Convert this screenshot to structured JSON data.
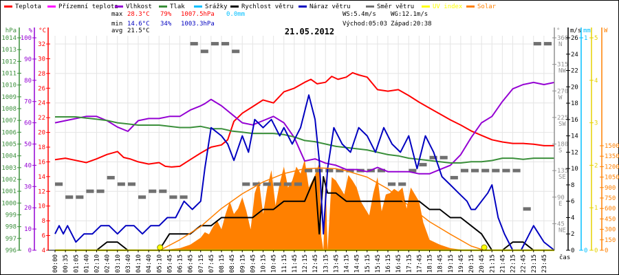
{
  "chart_data": {
    "type": "line",
    "title": "21.05.2012",
    "legend_placement": "top",
    "legend": [
      {
        "name": "Teplota",
        "color": "#ff0000"
      },
      {
        "name": "Přízemní teplota",
        "color": "#ff00ff"
      },
      {
        "name": "Vlhkost",
        "color": "#9400d3"
      },
      {
        "name": "Tlak",
        "color": "#3a8f3a"
      },
      {
        "name": "Srážky",
        "color": "#00bfff"
      },
      {
        "name": "Rychlost větru",
        "color": "#000000"
      },
      {
        "name": "Náraz větru",
        "color": "#0000c0"
      },
      {
        "name": "Směr větru",
        "color": "#707070"
      },
      {
        "name": "UV index",
        "color": "#ffff00"
      },
      {
        "name": "Solar",
        "color": "#ff8000"
      }
    ],
    "stats": {
      "max_label": "max",
      "min_label": "min",
      "avg_label": "avg",
      "max_temp": "28.3°C",
      "max_hum": "79%",
      "max_press": "1007.5hPa",
      "rain": "0.0mm",
      "min_temp": "14.6°C",
      "min_hum": "34%",
      "min_press": "1003.3hPa",
      "avg_temp": "21.5°C",
      "ws": "WS:5.4m/s",
      "wg": "WG:12.1m/s",
      "sunrise": "Východ:05:03",
      "sunset": "Západ:20:38"
    },
    "xlabel": "čas",
    "x_ticks": [
      "00:00",
      "00:35",
      "01:05",
      "01:40",
      "02:10",
      "02:40",
      "03:10",
      "03:40",
      "04:10",
      "04:40",
      "05:10",
      "05:45",
      "06:15",
      "06:45",
      "07:15",
      "07:45",
      "08:15",
      "08:45",
      "09:15",
      "09:45",
      "10:15",
      "10:45",
      "11:15",
      "11:45",
      "12:15",
      "12:45",
      "13:15",
      "13:45",
      "14:15",
      "14:45",
      "15:15",
      "15:45",
      "16:15",
      "16:45",
      "17:15",
      "17:45",
      "18:15",
      "18:45",
      "19:15",
      "19:45",
      "20:15",
      "20:45",
      "21:15",
      "21:45",
      "22:15",
      "22:45",
      "23:15",
      "23:45"
    ],
    "axes": {
      "pressure": {
        "unit": "hPa",
        "range": [
          996,
          1014
        ],
        "ticks": [
          996,
          997,
          998,
          999,
          1000,
          1001,
          1002,
          1003,
          1004,
          1005,
          1006,
          1007,
          1008,
          1009,
          1010,
          1011,
          1012,
          1013,
          1014
        ],
        "color": "#3a8f3a"
      },
      "humidity": {
        "unit": "%",
        "range": [
          0,
          100
        ],
        "ticks": [
          0,
          10,
          20,
          30,
          40,
          50,
          60,
          70,
          80,
          90,
          100
        ],
        "color": "#9400d3"
      },
      "temperature": {
        "unit": "°C",
        "range": [
          4,
          32
        ],
        "ticks": [
          4,
          6,
          8,
          10,
          12,
          14,
          16,
          18,
          20,
          22,
          24,
          26,
          28,
          30,
          32
        ],
        "color": "#ff0000"
      },
      "direction": {
        "unit": "°",
        "range": [
          0,
          360
        ],
        "ticks": [
          {
            "v": 45,
            "t": "45",
            "d": "NE"
          },
          {
            "v": 90,
            "t": "90",
            "d": "E"
          },
          {
            "v": 135,
            "t": "135",
            "d": "SE"
          },
          {
            "v": 180,
            "t": "180",
            "d": "S"
          },
          {
            "v": 225,
            "t": "225",
            "d": "SW"
          },
          {
            "v": 270,
            "t": "270",
            "d": "W"
          },
          {
            "v": 315,
            "t": "315",
            "d": "NW"
          },
          {
            "v": 360,
            "t": "360",
            "d": "N"
          }
        ],
        "color": "#707070"
      },
      "wind": {
        "unit": "m/s",
        "range": [
          0,
          26
        ],
        "ticks": [
          0,
          2,
          4,
          6,
          8,
          10,
          12,
          14,
          16,
          18,
          20,
          22,
          24,
          26
        ],
        "color": "#000000"
      },
      "rain": {
        "unit": "mm",
        "range": [
          0,
          1
        ],
        "ticks": [
          0,
          1
        ],
        "color": "#00bfff"
      },
      "uv": {
        "unit": "",
        "range": [
          0,
          5
        ],
        "ticks": [
          0,
          1,
          2,
          3,
          4,
          5
        ],
        "color": "#ffff00"
      },
      "solar": {
        "unit": "W",
        "range": [
          0,
          1500
        ],
        "ticks": [
          0,
          150,
          300,
          450,
          600,
          750,
          900,
          1050,
          1200,
          1350,
          1500
        ],
        "color": "#ff8000"
      }
    },
    "series": [
      {
        "name": "Teplota",
        "axis": "temperature",
        "x": [
          0,
          0.5,
          1,
          1.5,
          2,
          2.5,
          3,
          3.3,
          3.6,
          4,
          4.5,
          5,
          5.3,
          5.6,
          6,
          6.5,
          7,
          7.5,
          8,
          8.3,
          8.6,
          9,
          9.5,
          10,
          10.5,
          11,
          11.5,
          12,
          12.3,
          12.6,
          13,
          13.3,
          13.6,
          14,
          14.3,
          14.6,
          15,
          15.5,
          16,
          16.5,
          17,
          17.5,
          18,
          18.5,
          19,
          19.5,
          20,
          20.5,
          21,
          21.5,
          22,
          22.5,
          23,
          23.5,
          24
        ],
        "values": [
          16.3,
          16.5,
          16.2,
          15.9,
          16.4,
          17.0,
          17.4,
          16.6,
          16.4,
          16.0,
          15.7,
          15.9,
          15.4,
          15.3,
          15.4,
          16.3,
          17.2,
          18.0,
          18.3,
          19.0,
          21.5,
          22.6,
          23.5,
          24.4,
          24.0,
          25.5,
          26.0,
          26.8,
          27.2,
          26.6,
          26.8,
          27.6,
          27.2,
          27.5,
          28.1,
          27.8,
          27.5,
          25.8,
          25.6,
          25.8,
          25.0,
          24.1,
          23.3,
          22.5,
          21.7,
          21.0,
          20.2,
          19.6,
          19.0,
          18.7,
          18.5,
          18.5,
          18.4,
          18.2,
          18.2
        ]
      },
      {
        "name": "Vlhkost",
        "axis": "humidity",
        "x": [
          0,
          0.5,
          1,
          1.5,
          2,
          2.5,
          3,
          3.5,
          4,
          4.5,
          5,
          5.5,
          6,
          6.5,
          7,
          7.2,
          7.5,
          8,
          8.5,
          9,
          9.5,
          10,
          10.5,
          11,
          11.5,
          12,
          12.5,
          13,
          13.5,
          14,
          14.5,
          15,
          15.5,
          16,
          16.5,
          17,
          17.5,
          18,
          18.5,
          19,
          19.5,
          20,
          20.5,
          21,
          21.5,
          22,
          22.5,
          23,
          23.5,
          24
        ],
        "values": [
          60,
          61,
          62,
          63,
          63,
          61,
          58,
          56,
          61,
          62,
          62,
          63,
          63,
          66,
          68,
          69,
          71,
          68,
          64,
          60,
          59,
          61,
          63,
          60,
          53,
          42,
          43,
          41,
          40,
          38,
          38,
          37,
          39,
          37,
          37,
          37,
          36,
          36,
          38,
          40,
          45,
          53,
          60,
          63,
          70,
          76,
          78,
          79,
          78,
          79
        ]
      },
      {
        "name": "Tlak",
        "axis": "pressure",
        "x": [
          0,
          0.5,
          1,
          1.5,
          2,
          2.5,
          3,
          3.5,
          4,
          4.5,
          5,
          5.5,
          6,
          6.5,
          7,
          7.5,
          8,
          8.5,
          9,
          9.5,
          10,
          10.5,
          11,
          11.5,
          12,
          12.5,
          13,
          13.5,
          14,
          14.5,
          15,
          15.5,
          16,
          16.5,
          17,
          17.5,
          18,
          18.5,
          19,
          19.5,
          20,
          20.5,
          21,
          21.5,
          22,
          22.5,
          23,
          23.5,
          24
        ],
        "values": [
          1007.3,
          1007.3,
          1007.3,
          1007.2,
          1007.1,
          1007.0,
          1006.8,
          1006.7,
          1006.6,
          1006.6,
          1006.6,
          1006.5,
          1006.4,
          1006.4,
          1006.5,
          1006.3,
          1006.3,
          1006.1,
          1006.0,
          1005.9,
          1005.9,
          1005.9,
          1005.8,
          1005.6,
          1005.3,
          1005.2,
          1005.0,
          1004.8,
          1004.7,
          1004.6,
          1004.5,
          1004.3,
          1004.1,
          1004.0,
          1003.8,
          1003.7,
          1003.6,
          1003.5,
          1003.4,
          1003.4,
          1003.5,
          1003.5,
          1003.6,
          1003.8,
          1003.8,
          1003.7,
          1003.8,
          1003.8,
          1003.8
        ]
      },
      {
        "name": "Rychlost větru",
        "axis": "wind",
        "x": [
          0,
          1,
          2,
          2.5,
          3,
          3.5,
          4,
          4.5,
          5,
          5.5,
          6,
          6.5,
          7,
          7.5,
          8,
          8.5,
          9,
          9.5,
          10,
          10.5,
          11,
          11.5,
          12,
          12.5,
          12.7,
          12.9,
          13.1,
          13.5,
          14,
          14.5,
          15,
          15.5,
          16,
          16.5,
          17,
          17.5,
          18,
          18.5,
          19,
          19.5,
          20,
          20.5,
          21,
          21.5,
          22,
          22.5,
          23,
          23.5,
          24
        ],
        "values": [
          0,
          0,
          0,
          1,
          1,
          0,
          0,
          0,
          0,
          2,
          2,
          2,
          3,
          3,
          4,
          4,
          4,
          4,
          5,
          5,
          6,
          6,
          6,
          9,
          2,
          9,
          7,
          7,
          6,
          6,
          6,
          6,
          6,
          6,
          6,
          6,
          5,
          5,
          4,
          4,
          3,
          2,
          0,
          0,
          1,
          1,
          0,
          0,
          0
        ]
      },
      {
        "name": "Náraz větru",
        "axis": "wind",
        "x": [
          0,
          0.2,
          0.4,
          0.6,
          1,
          1.4,
          1.8,
          2.2,
          2.6,
          3,
          3.4,
          3.8,
          4.2,
          4.6,
          5,
          5.4,
          5.8,
          6.2,
          6.6,
          7,
          7.2,
          7.5,
          8,
          8.3,
          8.6,
          9,
          9.3,
          9.6,
          10,
          10.4,
          10.8,
          11,
          11.4,
          11.8,
          12.2,
          12.5,
          12.7,
          12.9,
          13.1,
          13.4,
          13.8,
          14.2,
          14.6,
          15,
          15.4,
          15.8,
          16.2,
          16.6,
          17,
          17.4,
          17.8,
          18.2,
          18.6,
          19,
          19.4,
          19.8,
          20,
          20.2,
          20.5,
          20.8,
          21,
          21.3,
          21.6,
          22,
          22.4,
          22.8,
          23,
          23.5,
          24
        ],
        "values": [
          2,
          3,
          2,
          3,
          1,
          2,
          2,
          3,
          3,
          2,
          3,
          3,
          2,
          3,
          3,
          4,
          4,
          6,
          5,
          6,
          10,
          15,
          14,
          13,
          11,
          14,
          12,
          16,
          15,
          16,
          14,
          15,
          13,
          15,
          19,
          16,
          11,
          2,
          10,
          15,
          13,
          12,
          15,
          14,
          12,
          15,
          13,
          12,
          14,
          10,
          14,
          12,
          9,
          8,
          7,
          6,
          5,
          5,
          6,
          7,
          8,
          4,
          2,
          0,
          0,
          2,
          3,
          1,
          0
        ]
      },
      {
        "name": "Směr větru",
        "axis": "direction",
        "x": [
          0,
          0.5,
          1,
          1.5,
          2,
          2.5,
          3,
          3.5,
          4,
          4.5,
          5,
          5.5,
          6,
          6.5,
          7,
          7.5,
          8,
          8.5,
          9,
          9.5,
          10,
          10.5,
          11,
          11.5,
          12,
          12.5,
          13,
          13.5,
          14,
          14.5,
          15,
          15.5,
          16,
          16.5,
          17,
          17.5,
          18,
          18.5,
          19,
          19.5,
          20,
          20.5,
          21,
          21.5,
          22,
          22.5,
          23,
          23.5,
          24
        ],
        "values": [
          112,
          90,
          90,
          100,
          100,
          123,
          112,
          112,
          90,
          100,
          100,
          90,
          90,
          350,
          337,
          350,
          350,
          337,
          112,
          112,
          112,
          112,
          112,
          112,
          135,
          135,
          135,
          135,
          135,
          135,
          135,
          135,
          112,
          112,
          135,
          145,
          157,
          157,
          123,
          135,
          135,
          135,
          135,
          135,
          135,
          70,
          350,
          350,
          350
        ]
      },
      {
        "name": "UV index",
        "axis": "uv",
        "x": [
          0,
          24
        ],
        "values": [
          0,
          0
        ]
      },
      {
        "name": "Solar",
        "axis": "solar",
        "type": "area",
        "x": [
          5.05,
          6,
          6.5,
          7,
          7.2,
          7.4,
          7.6,
          7.8,
          8,
          8.2,
          8.4,
          8.6,
          8.8,
          9,
          9.2,
          9.4,
          9.6,
          9.8,
          10,
          10.2,
          10.4,
          10.6,
          10.8,
          11,
          11.2,
          11.4,
          11.6,
          11.8,
          12,
          12.2,
          12.5,
          12.7,
          12.8,
          12.9,
          13.0,
          13.1,
          13.3,
          13.5,
          13.7,
          13.9,
          14.1,
          14.3,
          14.5,
          14.7,
          14.9,
          15.1,
          15.3,
          15.5,
          15.7,
          15.9,
          16.1,
          16.3,
          16.5,
          16.7,
          16.9,
          17.1,
          17.3,
          17.5,
          17.7,
          18,
          18.5,
          19,
          19.5,
          20,
          20.63
        ],
        "values": [
          0,
          30,
          80,
          180,
          260,
          230,
          340,
          420,
          300,
          520,
          700,
          520,
          600,
          760,
          560,
          300,
          820,
          1000,
          520,
          900,
          1150,
          640,
          960,
          1200,
          900,
          1000,
          1200,
          1100,
          1300,
          900,
          1080,
          1250,
          200,
          0,
          1100,
          0,
          1050,
          1000,
          900,
          800,
          1080,
          1000,
          900,
          700,
          600,
          500,
          820,
          1050,
          560,
          800,
          820,
          880,
          840,
          900,
          600,
          900,
          800,
          700,
          400,
          150,
          80,
          30,
          10,
          5,
          0
        ]
      },
      {
        "name": "Solar (theoretical)",
        "axis": "solar",
        "x": [
          5.05,
          6,
          7,
          8,
          9,
          10,
          11,
          12,
          12.8,
          13.5,
          14,
          15,
          16,
          17,
          18,
          19,
          20,
          20.63
        ],
        "values": [
          0,
          150,
          340,
          600,
          810,
          980,
          1100,
          1170,
          1180,
          1170,
          1140,
          1050,
          880,
          640,
          410,
          230,
          60,
          0
        ]
      }
    ],
    "sun_markers": {
      "sunrise_hour": 5.05,
      "sunset_hour": 20.63
    }
  }
}
